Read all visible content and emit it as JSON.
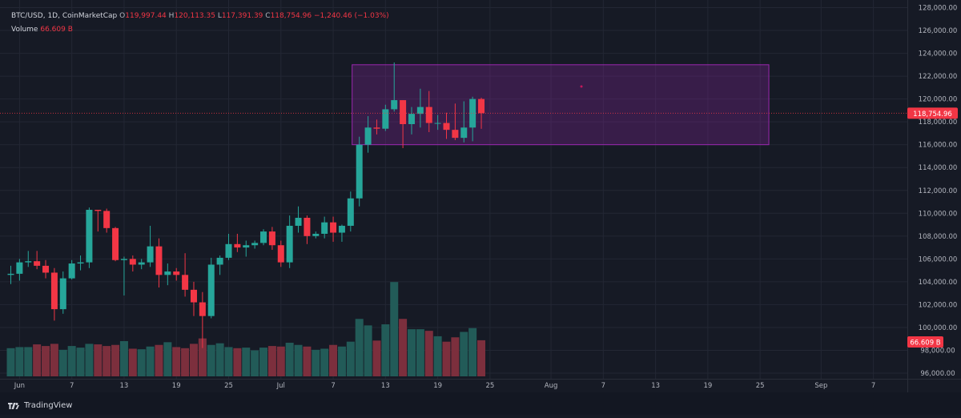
{
  "header": {
    "symbol": "BTC/USD",
    "interval": "1D",
    "source": "CoinMarketCap",
    "open_label": "O",
    "open": "119,997.44",
    "high_label": "H",
    "high": "120,113.35",
    "low_label": "L",
    "low": "117,391.39",
    "close_label": "C",
    "close": "118,754.96",
    "change": "−1,240.46 (−1.03%)",
    "volume_label": "Volume",
    "volume": "66.609 B"
  },
  "brand": {
    "name": "TradingView",
    "logo_icon": "tradingview-logo-icon"
  },
  "colors": {
    "background": "#161a25",
    "up": "#26a69a",
    "down": "#f23645",
    "up_volume": "#225b58",
    "down_volume": "#7c2f3d",
    "grid": "#232734",
    "rectangle_border": "#9c27b0",
    "rectangle_fill": "rgba(156,39,176,0.26)",
    "price_line": "#f23645"
  },
  "chart_data": {
    "type": "candlestick",
    "grid": true,
    "y_axis_position": "right",
    "ylim": [
      95500,
      128500
    ],
    "y_ticks": [
      "96,000.00",
      "98,000.00",
      "100,000.00",
      "102,000.00",
      "104,000.00",
      "106,000.00",
      "108,000.00",
      "110,000.00",
      "112,000.00",
      "114,000.00",
      "116,000.00",
      "118,000.00",
      "120,000.00",
      "122,000.00",
      "124,000.00",
      "126,000.00",
      "128,000.00"
    ],
    "y_tick_values": [
      96000,
      98000,
      100000,
      102000,
      104000,
      106000,
      108000,
      110000,
      112000,
      114000,
      116000,
      118000,
      120000,
      122000,
      124000,
      126000,
      128000
    ],
    "x_ticks": [
      {
        "label": "Jun",
        "date": "2025-06-01"
      },
      {
        "label": "7",
        "date": "2025-06-07"
      },
      {
        "label": "13",
        "date": "2025-06-13"
      },
      {
        "label": "19",
        "date": "2025-06-19"
      },
      {
        "label": "25",
        "date": "2025-06-25"
      },
      {
        "label": "Jul",
        "date": "2025-07-01"
      },
      {
        "label": "7",
        "date": "2025-07-07"
      },
      {
        "label": "13",
        "date": "2025-07-13"
      },
      {
        "label": "19",
        "date": "2025-07-19"
      },
      {
        "label": "25",
        "date": "2025-07-25"
      },
      {
        "label": "Aug",
        "date": "2025-08-01"
      },
      {
        "label": "7",
        "date": "2025-08-07"
      },
      {
        "label": "13",
        "date": "2025-08-13"
      },
      {
        "label": "19",
        "date": "2025-08-19"
      },
      {
        "label": "25",
        "date": "2025-08-25"
      },
      {
        "label": "Sep",
        "date": "2025-09-01"
      },
      {
        "label": "7",
        "date": "2025-09-07"
      }
    ],
    "candles": [
      {
        "date": "2025-05-31",
        "o": 104600,
        "h": 105400,
        "l": 103800,
        "c": 104700
      },
      {
        "date": "2025-06-01",
        "o": 104700,
        "h": 106000,
        "l": 104100,
        "c": 105700
      },
      {
        "date": "2025-06-02",
        "o": 105700,
        "h": 106700,
        "l": 105300,
        "c": 105800
      },
      {
        "date": "2025-06-03",
        "o": 105800,
        "h": 106700,
        "l": 105100,
        "c": 105400
      },
      {
        "date": "2025-06-04",
        "o": 105400,
        "h": 105900,
        "l": 104300,
        "c": 104800
      },
      {
        "date": "2025-06-05",
        "o": 104800,
        "h": 105200,
        "l": 100600,
        "c": 101600
      },
      {
        "date": "2025-06-06",
        "o": 101600,
        "h": 104900,
        "l": 101200,
        "c": 104300
      },
      {
        "date": "2025-06-07",
        "o": 104300,
        "h": 105900,
        "l": 104200,
        "c": 105600
      },
      {
        "date": "2025-06-08",
        "o": 105600,
        "h": 106300,
        "l": 105000,
        "c": 105700
      },
      {
        "date": "2025-06-09",
        "o": 105700,
        "h": 110500,
        "l": 105200,
        "c": 110300
      },
      {
        "date": "2025-06-10",
        "o": 110300,
        "h": 110300,
        "l": 108400,
        "c": 110200
      },
      {
        "date": "2025-06-11",
        "o": 110200,
        "h": 110400,
        "l": 108300,
        "c": 108700
      },
      {
        "date": "2025-06-12",
        "o": 108700,
        "h": 108800,
        "l": 105800,
        "c": 105900
      },
      {
        "date": "2025-06-13",
        "o": 105900,
        "h": 106200,
        "l": 102800,
        "c": 106000
      },
      {
        "date": "2025-06-14",
        "o": 106000,
        "h": 106300,
        "l": 104900,
        "c": 105500
      },
      {
        "date": "2025-06-15",
        "o": 105500,
        "h": 106000,
        "l": 105100,
        "c": 105700
      },
      {
        "date": "2025-06-16",
        "o": 105700,
        "h": 108900,
        "l": 105300,
        "c": 107100
      },
      {
        "date": "2025-06-17",
        "o": 107100,
        "h": 107800,
        "l": 103500,
        "c": 104600
      },
      {
        "date": "2025-06-18",
        "o": 104600,
        "h": 105600,
        "l": 103700,
        "c": 104900
      },
      {
        "date": "2025-06-19",
        "o": 104900,
        "h": 105200,
        "l": 104100,
        "c": 104600
      },
      {
        "date": "2025-06-20",
        "o": 104600,
        "h": 106500,
        "l": 102700,
        "c": 103300
      },
      {
        "date": "2025-06-21",
        "o": 103300,
        "h": 104000,
        "l": 101000,
        "c": 102200
      },
      {
        "date": "2025-06-22",
        "o": 102200,
        "h": 103100,
        "l": 98200,
        "c": 101000
      },
      {
        "date": "2025-06-23",
        "o": 101000,
        "h": 106100,
        "l": 100800,
        "c": 105500
      },
      {
        "date": "2025-06-24",
        "o": 105500,
        "h": 106300,
        "l": 104600,
        "c": 106100
      },
      {
        "date": "2025-06-25",
        "o": 106100,
        "h": 108200,
        "l": 105900,
        "c": 107300
      },
      {
        "date": "2025-06-26",
        "o": 107300,
        "h": 108200,
        "l": 106600,
        "c": 107000
      },
      {
        "date": "2025-06-27",
        "o": 107000,
        "h": 107600,
        "l": 106200,
        "c": 107200
      },
      {
        "date": "2025-06-28",
        "o": 107200,
        "h": 107600,
        "l": 106900,
        "c": 107400
      },
      {
        "date": "2025-06-29",
        "o": 107400,
        "h": 108600,
        "l": 107200,
        "c": 108400
      },
      {
        "date": "2025-06-30",
        "o": 108400,
        "h": 108800,
        "l": 106800,
        "c": 107200
      },
      {
        "date": "2025-07-01",
        "o": 107200,
        "h": 107600,
        "l": 105300,
        "c": 105700
      },
      {
        "date": "2025-07-02",
        "o": 105700,
        "h": 109800,
        "l": 105200,
        "c": 108900
      },
      {
        "date": "2025-07-03",
        "o": 108900,
        "h": 110600,
        "l": 108300,
        "c": 109600
      },
      {
        "date": "2025-07-04",
        "o": 109600,
        "h": 109800,
        "l": 107300,
        "c": 108000
      },
      {
        "date": "2025-07-05",
        "o": 108000,
        "h": 108400,
        "l": 107800,
        "c": 108200
      },
      {
        "date": "2025-07-06",
        "o": 108200,
        "h": 109700,
        "l": 107800,
        "c": 109200
      },
      {
        "date": "2025-07-07",
        "o": 109200,
        "h": 109700,
        "l": 107500,
        "c": 108300
      },
      {
        "date": "2025-07-08",
        "o": 108300,
        "h": 109000,
        "l": 107500,
        "c": 108900
      },
      {
        "date": "2025-07-09",
        "o": 108900,
        "h": 111900,
        "l": 108400,
        "c": 111300
      },
      {
        "date": "2025-07-10",
        "o": 111300,
        "h": 116700,
        "l": 110600,
        "c": 116000
      },
      {
        "date": "2025-07-11",
        "o": 116000,
        "h": 118500,
        "l": 115300,
        "c": 117500
      },
      {
        "date": "2025-07-12",
        "o": 117500,
        "h": 118200,
        "l": 116900,
        "c": 117400
      },
      {
        "date": "2025-07-13",
        "o": 117400,
        "h": 119500,
        "l": 117200,
        "c": 119100
      },
      {
        "date": "2025-07-14",
        "o": 119100,
        "h": 123200,
        "l": 118900,
        "c": 119900
      },
      {
        "date": "2025-07-15",
        "o": 119900,
        "h": 119900,
        "l": 115700,
        "c": 117800
      },
      {
        "date": "2025-07-16",
        "o": 117800,
        "h": 119300,
        "l": 116900,
        "c": 118700
      },
      {
        "date": "2025-07-17",
        "o": 118700,
        "h": 120900,
        "l": 117500,
        "c": 119300
      },
      {
        "date": "2025-07-18",
        "o": 119300,
        "h": 120700,
        "l": 117100,
        "c": 117900
      },
      {
        "date": "2025-07-19",
        "o": 117900,
        "h": 118600,
        "l": 117300,
        "c": 117900
      },
      {
        "date": "2025-07-20",
        "o": 117900,
        "h": 118800,
        "l": 116500,
        "c": 117300
      },
      {
        "date": "2025-07-21",
        "o": 117300,
        "h": 119600,
        "l": 116400,
        "c": 116600
      },
      {
        "date": "2025-07-22",
        "o": 116600,
        "h": 119800,
        "l": 116200,
        "c": 117500
      },
      {
        "date": "2025-07-23",
        "o": 117500,
        "h": 120200,
        "l": 116300,
        "c": 120000
      },
      {
        "date": "2025-07-24",
        "o": 119997.44,
        "h": 120113.35,
        "l": 117391.39,
        "c": 118754.96
      }
    ],
    "volume_billions": [
      52,
      54,
      54,
      59,
      56,
      60,
      49,
      56,
      53,
      60,
      59,
      56,
      58,
      65,
      51,
      50,
      55,
      58,
      63,
      54,
      52,
      60,
      70,
      58,
      61,
      54,
      52,
      53,
      48,
      53,
      56,
      55,
      62,
      58,
      55,
      49,
      51,
      58,
      55,
      64,
      106,
      94,
      66,
      96,
      174,
      106,
      87,
      87,
      84,
      74,
      64,
      72,
      82,
      89,
      66.609
    ],
    "rectangle": {
      "x_start": "2025-07-10",
      "x_end": "2025-08-26",
      "y_low": 116000,
      "y_high": 123000
    },
    "last_price_label": "118,754.96",
    "last_price": 118754.96,
    "volume_axis_label": "66.609 B"
  }
}
